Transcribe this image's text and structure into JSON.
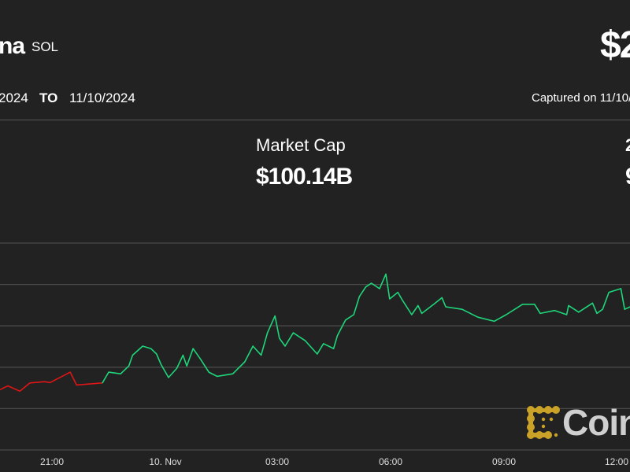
{
  "header": {
    "name": "na",
    "symbol": "SOL",
    "price": "$2",
    "from_date": "2024",
    "to_label": "TO",
    "to_date": "11/10/2024",
    "captured": "Captured on 11/10/2"
  },
  "stats": {
    "market_cap_label": "Market Cap",
    "market_cap_value": "$100.14B",
    "right_label_partial": "2",
    "right_value_partial": "9"
  },
  "logo": {
    "text": "Coin",
    "icon": "coindesk-logo-icon",
    "color": "#c9a227"
  },
  "chart_data": {
    "type": "line",
    "title": "",
    "xlabel": "",
    "ylabel": "",
    "x_tick_labels": [
      "21:00",
      "10. Nov",
      "03:00",
      "06:00",
      "09:00",
      "12:00"
    ],
    "x_range": [
      "11/09 19:38",
      "11/10 12:18"
    ],
    "y_axis_labels_visible": false,
    "grid": true,
    "colors": {
      "up": "#1ed67a",
      "down": "#e01515",
      "grid": "#4a4a4a"
    },
    "down_segment_until": "11/09 22:20",
    "points": [
      [
        "11/09 19:38",
        1.46
      ],
      [
        "11/09 19:50",
        1.55
      ],
      [
        "11/09 20:09",
        1.42
      ],
      [
        "11/09 20:25",
        1.62
      ],
      [
        "11/09 20:48",
        1.65
      ],
      [
        "11/09 20:57",
        1.63
      ],
      [
        "11/09 21:29",
        1.88
      ],
      [
        "11/09 21:39",
        1.57
      ],
      [
        "11/09 22:20",
        1.62
      ],
      [
        "11/09 22:30",
        1.88
      ],
      [
        "11/09 22:49",
        1.84
      ],
      [
        "11/09 23:02",
        2.03
      ],
      [
        "11/09 23:08",
        2.29
      ],
      [
        "11/09 23:24",
        2.51
      ],
      [
        "11/09 23:37",
        2.45
      ],
      [
        "11/09 23:46",
        2.32
      ],
      [
        "11/09 23:53",
        2.07
      ],
      [
        "11/10 00:05",
        1.75
      ],
      [
        "11/10 00:18",
        1.97
      ],
      [
        "11/10 00:28",
        2.29
      ],
      [
        "11/10 00:34",
        2.03
      ],
      [
        "11/10 00:44",
        2.45
      ],
      [
        "11/10 00:56",
        2.19
      ],
      [
        "11/10 01:09",
        1.88
      ],
      [
        "11/10 01:22",
        1.78
      ],
      [
        "11/10 01:47",
        1.84
      ],
      [
        "11/10 02:06",
        2.13
      ],
      [
        "11/10 02:19",
        2.51
      ],
      [
        "11/10 02:32",
        2.29
      ],
      [
        "11/10 02:42",
        2.83
      ],
      [
        "11/10 02:54",
        3.24
      ],
      [
        "11/10 03:01",
        2.7
      ],
      [
        "11/10 03:10",
        2.51
      ],
      [
        "11/10 03:23",
        2.83
      ],
      [
        "11/10 03:42",
        2.64
      ],
      [
        "11/10 04:01",
        2.32
      ],
      [
        "11/10 04:11",
        2.57
      ],
      [
        "11/10 04:27",
        2.45
      ],
      [
        "11/10 04:33",
        2.76
      ],
      [
        "11/10 04:46",
        3.14
      ],
      [
        "11/10 04:59",
        3.27
      ],
      [
        "11/10 05:08",
        3.71
      ],
      [
        "11/10 05:18",
        3.94
      ],
      [
        "11/10 05:27",
        4.03
      ],
      [
        "11/10 05:40",
        3.9
      ],
      [
        "11/10 05:50",
        4.25
      ],
      [
        "11/10 05:56",
        3.65
      ],
      [
        "11/10 06:09",
        3.81
      ],
      [
        "11/10 06:15",
        3.65
      ],
      [
        "11/10 06:31",
        3.27
      ],
      [
        "11/10 06:41",
        3.49
      ],
      [
        "11/10 06:47",
        3.3
      ],
      [
        "11/10 07:06",
        3.52
      ],
      [
        "11/10 07:19",
        3.68
      ],
      [
        "11/10 07:25",
        3.46
      ],
      [
        "11/10 07:51",
        3.4
      ],
      [
        "11/10 08:16",
        3.21
      ],
      [
        "11/10 08:42",
        3.11
      ],
      [
        "11/10 09:01",
        3.27
      ],
      [
        "11/10 09:27",
        3.52
      ],
      [
        "11/10 09:46",
        3.52
      ],
      [
        "11/10 09:55",
        3.3
      ],
      [
        "11/10 10:18",
        3.37
      ],
      [
        "11/10 10:37",
        3.27
      ],
      [
        "11/10 10:40",
        3.49
      ],
      [
        "11/10 10:56",
        3.33
      ],
      [
        "11/10 11:18",
        3.55
      ],
      [
        "11/10 11:25",
        3.3
      ],
      [
        "11/10 11:34",
        3.4
      ],
      [
        "11/10 11:44",
        3.81
      ],
      [
        "11/10 12:03",
        3.9
      ],
      [
        "11/10 12:09",
        3.4
      ],
      [
        "11/10 12:18",
        3.46
      ]
    ]
  }
}
